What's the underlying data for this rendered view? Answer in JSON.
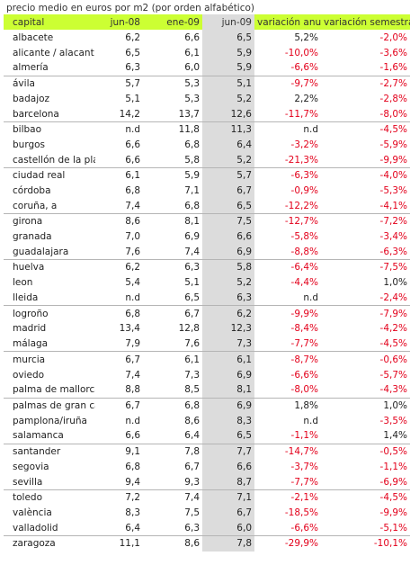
{
  "caption": "precio medio en euros por m2 (por orden alfabético)",
  "headers": {
    "capital": "capital",
    "jun08": "jun-08",
    "ene09": "ene-09",
    "jun09": "jun-09",
    "var_anual": "variación anual",
    "var_semestral": "variación semestral"
  },
  "rows": [
    {
      "capital": "albacete",
      "jun08": "6,2",
      "ene09": "6,6",
      "jun09": "6,5",
      "var_anual": "5,2%",
      "var_semestral": "-2,0%",
      "group_start": true
    },
    {
      "capital": "alicante / alacant",
      "jun08": "6,5",
      "ene09": "6,1",
      "jun09": "5,9",
      "var_anual": "-10,0%",
      "var_semestral": "-3,6%"
    },
    {
      "capital": "almería",
      "jun08": "6,3",
      "ene09": "6,0",
      "jun09": "5,9",
      "var_anual": "-6,6%",
      "var_semestral": "-1,6%"
    },
    {
      "capital": "ávila",
      "jun08": "5,7",
      "ene09": "5,3",
      "jun09": "5,1",
      "var_anual": "-9,7%",
      "var_semestral": "-2,7%",
      "group_start": true
    },
    {
      "capital": "badajoz",
      "jun08": "5,1",
      "ene09": "5,3",
      "jun09": "5,2",
      "var_anual": "2,2%",
      "var_semestral": "-2,8%"
    },
    {
      "capital": "barcelona",
      "jun08": "14,2",
      "ene09": "13,7",
      "jun09": "12,6",
      "var_anual": "-11,7%",
      "var_semestral": "-8,0%"
    },
    {
      "capital": "bilbao",
      "jun08": "n.d",
      "ene09": "11,8",
      "jun09": "11,3",
      "var_anual": "n.d",
      "var_semestral": "-4,5%",
      "group_start": true
    },
    {
      "capital": "burgos",
      "jun08": "6,6",
      "ene09": "6,8",
      "jun09": "6,4",
      "var_anual": "-3,2%",
      "var_semestral": "-5,9%"
    },
    {
      "capital": "castellón de la plana",
      "jun08": "6,6",
      "ene09": "5,8",
      "jun09": "5,2",
      "var_anual": "-21,3%",
      "var_semestral": "-9,9%"
    },
    {
      "capital": "ciudad real",
      "jun08": "6,1",
      "ene09": "5,9",
      "jun09": "5,7",
      "var_anual": "-6,3%",
      "var_semestral": "-4,0%",
      "group_start": true
    },
    {
      "capital": "córdoba",
      "jun08": "6,8",
      "ene09": "7,1",
      "jun09": "6,7",
      "var_anual": "-0,9%",
      "var_semestral": "-5,3%"
    },
    {
      "capital": "coruña, a",
      "jun08": "7,4",
      "ene09": "6,8",
      "jun09": "6,5",
      "var_anual": "-12,2%",
      "var_semestral": "-4,1%"
    },
    {
      "capital": "girona",
      "jun08": "8,6",
      "ene09": "8,1",
      "jun09": "7,5",
      "var_anual": "-12,7%",
      "var_semestral": "-7,2%",
      "group_start": true
    },
    {
      "capital": "granada",
      "jun08": "7,0",
      "ene09": "6,9",
      "jun09": "6,6",
      "var_anual": "-5,8%",
      "var_semestral": "-3,4%"
    },
    {
      "capital": "guadalajara",
      "jun08": "7,6",
      "ene09": "7,4",
      "jun09": "6,9",
      "var_anual": "-8,8%",
      "var_semestral": "-6,3%"
    },
    {
      "capital": "huelva",
      "jun08": "6,2",
      "ene09": "6,3",
      "jun09": "5,8",
      "var_anual": "-6,4%",
      "var_semestral": "-7,5%",
      "group_start": true
    },
    {
      "capital": "leon",
      "jun08": "5,4",
      "ene09": "5,1",
      "jun09": "5,2",
      "var_anual": "-4,4%",
      "var_semestral": "1,0%"
    },
    {
      "capital": "lleida",
      "jun08": "n.d",
      "ene09": "6,5",
      "jun09": "6,3",
      "var_anual": "n.d",
      "var_semestral": "-2,4%"
    },
    {
      "capital": "logroño",
      "jun08": "6,8",
      "ene09": "6,7",
      "jun09": "6,2",
      "var_anual": "-9,9%",
      "var_semestral": "-7,9%",
      "group_start": true
    },
    {
      "capital": "madrid",
      "jun08": "13,4",
      "ene09": "12,8",
      "jun09": "12,3",
      "var_anual": "-8,4%",
      "var_semestral": "-4,2%"
    },
    {
      "capital": "málaga",
      "jun08": "7,9",
      "ene09": "7,6",
      "jun09": "7,3",
      "var_anual": "-7,7%",
      "var_semestral": "-4,5%"
    },
    {
      "capital": "murcia",
      "jun08": "6,7",
      "ene09": "6,1",
      "jun09": "6,1",
      "var_anual": "-8,7%",
      "var_semestral": "-0,6%",
      "group_start": true
    },
    {
      "capital": "oviedo",
      "jun08": "7,4",
      "ene09": "7,3",
      "jun09": "6,9",
      "var_anual": "-6,6%",
      "var_semestral": "-5,7%"
    },
    {
      "capital": "palma de mallorca",
      "jun08": "8,8",
      "ene09": "8,5",
      "jun09": "8,1",
      "var_anual": "-8,0%",
      "var_semestral": "-4,3%"
    },
    {
      "capital": "palmas de gran canaria",
      "jun08": "6,7",
      "ene09": "6,8",
      "jun09": "6,9",
      "var_anual": "1,8%",
      "var_semestral": "1,0%",
      "group_start": true
    },
    {
      "capital": "pamplona/iruña",
      "jun08": "n.d",
      "ene09": "8,6",
      "jun09": "8,3",
      "var_anual": "n.d",
      "var_semestral": "-3,5%"
    },
    {
      "capital": "salamanca",
      "jun08": "6,6",
      "ene09": "6,4",
      "jun09": "6,5",
      "var_anual": "-1,1%",
      "var_semestral": "1,4%"
    },
    {
      "capital": "santander",
      "jun08": "9,1",
      "ene09": "7,8",
      "jun09": "7,7",
      "var_anual": "-14,7%",
      "var_semestral": "-0,5%",
      "group_start": true
    },
    {
      "capital": "segovia",
      "jun08": "6,8",
      "ene09": "6,7",
      "jun09": "6,6",
      "var_anual": "-3,7%",
      "var_semestral": "-1,1%"
    },
    {
      "capital": "sevilla",
      "jun08": "9,4",
      "ene09": "9,3",
      "jun09": "8,7",
      "var_anual": "-7,7%",
      "var_semestral": "-6,9%"
    },
    {
      "capital": "toledo",
      "jun08": "7,2",
      "ene09": "7,4",
      "jun09": "7,1",
      "var_anual": "-2,1%",
      "var_semestral": "-4,5%",
      "group_start": true
    },
    {
      "capital": "valència",
      "jun08": "8,3",
      "ene09": "7,5",
      "jun09": "6,7",
      "var_anual": "-18,5%",
      "var_semestral": "-9,9%"
    },
    {
      "capital": "valladolid",
      "jun08": "6,4",
      "ene09": "6,3",
      "jun09": "6,0",
      "var_anual": "-6,6%",
      "var_semestral": "-5,1%"
    },
    {
      "capital": "zaragoza",
      "jun08": "11,1",
      "ene09": "8,6",
      "jun09": "7,8",
      "var_anual": "-29,9%",
      "var_semestral": "-10,1%",
      "group_start": true
    }
  ],
  "colors": {
    "header_bg": "#ccff33",
    "highlight_column_bg": "#dcdcdc",
    "negative_text": "#e3001b",
    "positive_text": "#222222",
    "divider": "#b5b5b5"
  }
}
